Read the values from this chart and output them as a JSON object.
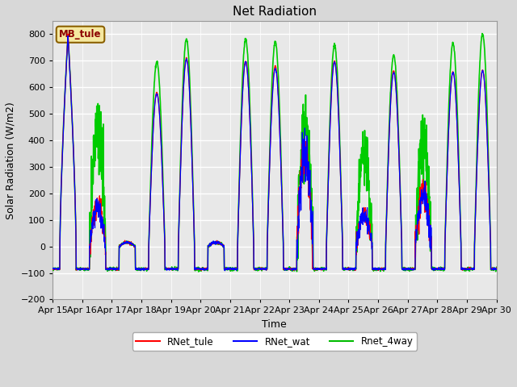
{
  "title": "Net Radiation",
  "ylabel": "Solar Radiation (W/m2)",
  "xlabel": "Time",
  "ylim": [
    -200,
    850
  ],
  "yticks": [
    -200,
    -100,
    0,
    100,
    200,
    300,
    400,
    500,
    600,
    700,
    800
  ],
  "x_labels": [
    "Apr 15",
    "Apr 16",
    "Apr 17",
    "Apr 18",
    "Apr 19",
    "Apr 20",
    "Apr 21",
    "Apr 22",
    "Apr 23",
    "Apr 24",
    "Apr 25",
    "Apr 26",
    "Apr 27",
    "Apr 28",
    "Apr 29",
    "Apr 30"
  ],
  "station_label": "MB_tule",
  "station_box_facecolor": "#f5e8a0",
  "station_box_edgecolor": "#8b6000",
  "station_text_color": "#8b0000",
  "legend_entries": [
    "RNet_tule",
    "RNet_wat",
    "Rnet_4way"
  ],
  "legend_colors": [
    "#ff0000",
    "#0000ff",
    "#00bb00"
  ],
  "line_colors": {
    "tule": "#ff0000",
    "wat": "#0000ff",
    "4way": "#00cc00"
  },
  "plot_bg_color": "#e8e8e8",
  "grid_color": "#ffffff",
  "title_fontsize": 11,
  "axis_label_fontsize": 9,
  "tick_fontsize": 8
}
